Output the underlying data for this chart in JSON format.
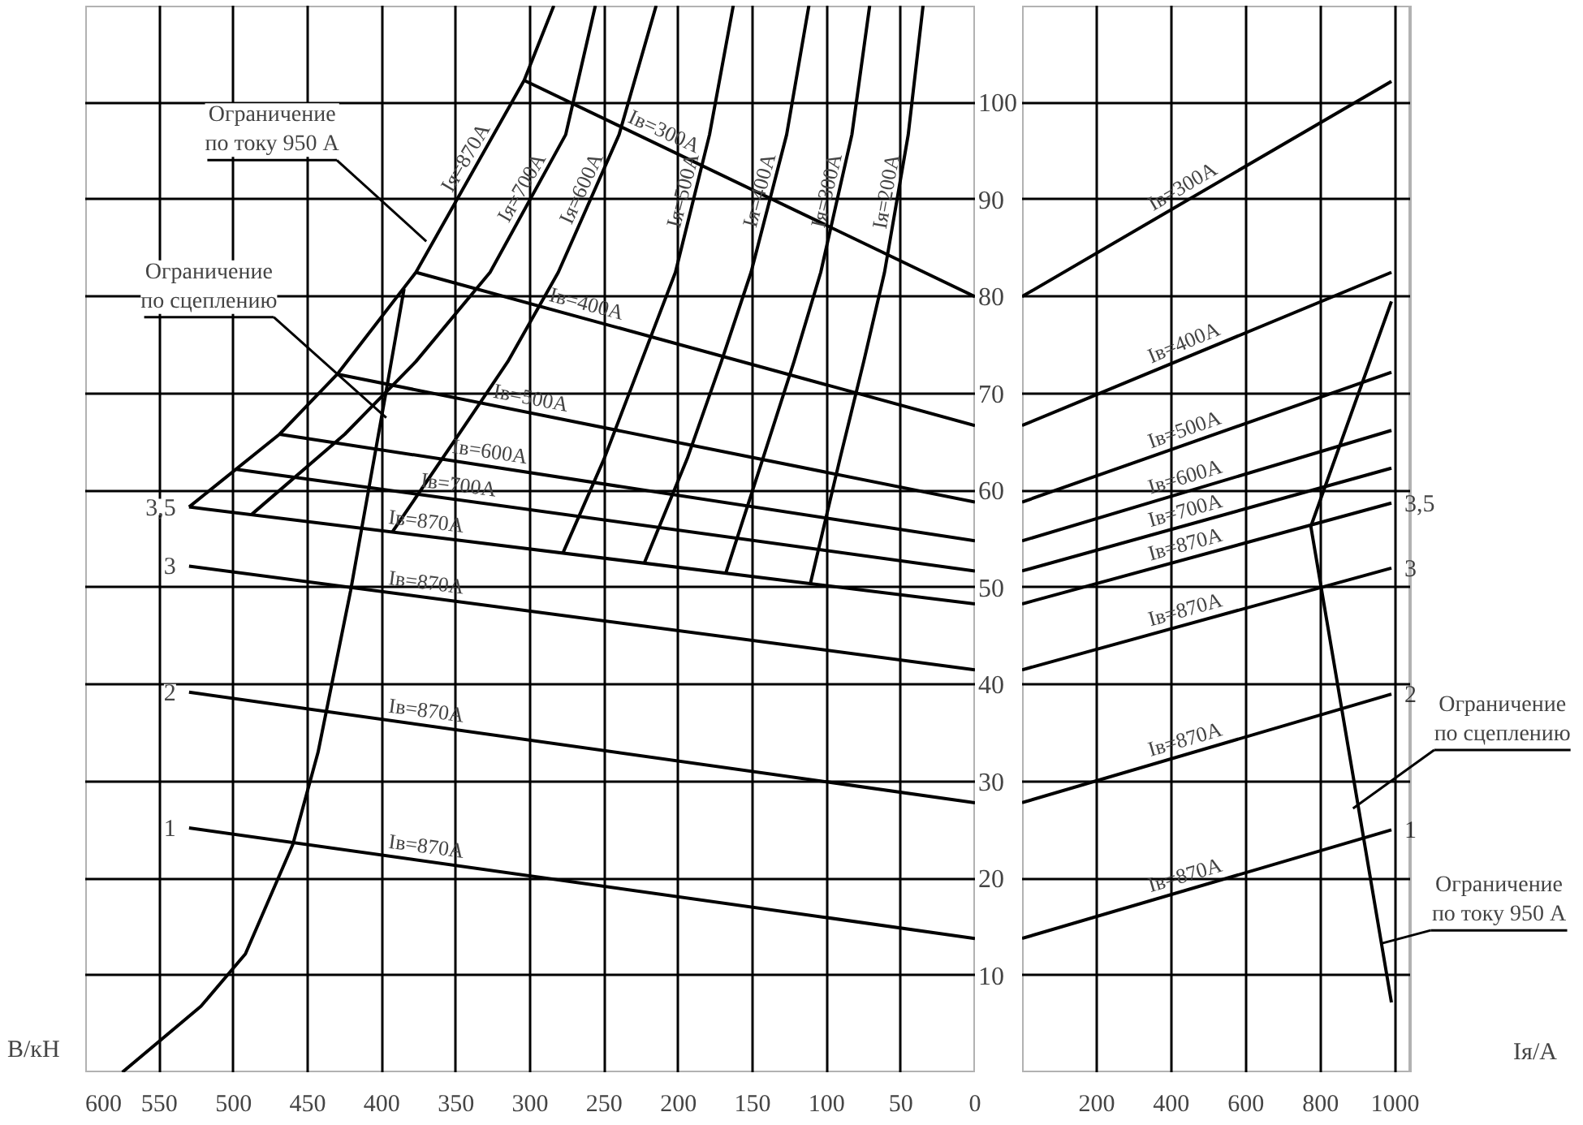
{
  "chart_data": [
    {
      "type": "line",
      "xlabel": "В/кН",
      "xlim": [
        600,
        0
      ],
      "xticks": [
        600,
        550,
        500,
        450,
        400,
        350,
        300,
        250,
        200,
        150,
        100,
        50,
        0
      ],
      "ylim": [
        0,
        110
      ],
      "yticks": [
        10,
        20,
        30,
        40,
        50,
        60,
        70,
        80,
        90,
        100
      ],
      "grid": true,
      "series": [
        {
          "name": "Iв=300A",
          "color": "#000000",
          "x": [
            304,
            0
          ],
          "values": [
            102.3,
            80
          ]
        },
        {
          "name": "Iв=400A",
          "color": "#000000",
          "x": [
            377,
            0
          ],
          "values": [
            82.5,
            66.7
          ]
        },
        {
          "name": "Iв=500A",
          "color": "#000000",
          "x": [
            430,
            0
          ],
          "values": [
            72,
            58.8
          ]
        },
        {
          "name": "Iв=600A",
          "color": "#000000",
          "x": [
            469,
            0
          ],
          "values": [
            65.8,
            54.8
          ]
        },
        {
          "name": "Iв=700A",
          "color": "#000000",
          "x": [
            499,
            0
          ],
          "values": [
            62.2,
            51.7
          ]
        },
        {
          "name": "Iв=870A",
          "color": "#000000",
          "x": [
            530,
            0
          ],
          "values": [
            58.3,
            48.3
          ]
        },
        {
          "name": "Iв=870A",
          "color": "#000000",
          "x": [
            530,
            0
          ],
          "values": [
            52.2,
            41.5
          ]
        },
        {
          "name": "Iв=870A",
          "color": "#000000",
          "x": [
            530,
            0
          ],
          "values": [
            39.2,
            27.8
          ]
        },
        {
          "name": "Iв=870A",
          "color": "#000000",
          "x": [
            530,
            0
          ],
          "values": [
            25.2,
            13.8
          ]
        },
        {
          "name": "Iя=870A",
          "color": "#000000",
          "x": [
            530,
            469,
            430,
            377,
            304,
            284
          ],
          "values": [
            58.3,
            65.8,
            72,
            82.5,
            102.3,
            110
          ]
        },
        {
          "name": "Iя=700A",
          "color": "#000000",
          "x": [
            488,
            425,
            377,
            327,
            276,
            256
          ],
          "values": [
            57.5,
            65.8,
            73.3,
            82.5,
            96.7,
            110
          ]
        },
        {
          "name": "Iя=600A",
          "color": "#000000",
          "x": [
            393,
            348,
            315,
            281,
            240,
            215
          ],
          "values": [
            55.7,
            65.8,
            73.3,
            82.5,
            96.7,
            110
          ]
        },
        {
          "name": "Iя=500A",
          "color": "#000000",
          "x": [
            278,
            250,
            225,
            202,
            179,
            163
          ],
          "values": [
            53.5,
            63.3,
            73.3,
            82.5,
            96.7,
            110
          ]
        },
        {
          "name": "Iя=400A",
          "color": "#000000",
          "x": [
            223,
            194,
            171,
            151,
            127,
            112
          ],
          "values": [
            52.5,
            63.3,
            73.3,
            82.5,
            96.7,
            110
          ]
        },
        {
          "name": "Iя=300A",
          "color": "#000000",
          "x": [
            168,
            143,
            122,
            104,
            83,
            71
          ],
          "values": [
            51.5,
            63.3,
            73.3,
            82.5,
            96.7,
            110
          ]
        },
        {
          "name": "Iя=200A",
          "color": "#000000",
          "x": [
            111,
            91,
            75,
            61,
            45,
            35
          ],
          "values": [
            50.4,
            63.3,
            73.3,
            82.5,
            96.7,
            110
          ]
        },
        {
          "color": "#000000",
          "x": [
            575,
            522,
            492,
            460,
            443,
            421,
            409,
            397,
            385
          ],
          "values": [
            0,
            6.8,
            12.2,
            23.5,
            33,
            49.7,
            60,
            70.3,
            80.8
          ]
        }
      ],
      "annotations": [
        {
          "text": "Ограничение по току 950 А",
          "x": 370,
          "y": 85.7
        },
        {
          "text": "Ограничение по сцеплению",
          "x": 397,
          "y": 67.5
        },
        {
          "text": "3,5",
          "x": 530,
          "y": 58.3
        },
        {
          "text": "3",
          "x": 530,
          "y": 52.2
        },
        {
          "text": "2",
          "x": 530,
          "y": 39.2
        },
        {
          "text": "1",
          "x": 530,
          "y": 25.2
        }
      ]
    },
    {
      "type": "line",
      "xlabel": "Iя/A",
      "xlim": [
        0,
        1040
      ],
      "xticks": [
        {
          "value": 0,
          "label": null
        },
        200,
        400,
        600,
        800,
        1000
      ],
      "ylim": [
        0,
        110
      ],
      "yticks": [
        10,
        20,
        30,
        40,
        50,
        60,
        70,
        80,
        90,
        100
      ],
      "grid": true,
      "tick_labels": "x",
      "series": [
        {
          "name": "Iв=300A",
          "color": "#000000",
          "x": [
            0,
            990
          ],
          "values": [
            80,
            102.2
          ]
        },
        {
          "name": "Iв=400A",
          "color": "#000000",
          "x": [
            0,
            990
          ],
          "values": [
            66.7,
            82.5
          ]
        },
        {
          "name": "Iв=500A",
          "color": "#000000",
          "x": [
            0,
            990
          ],
          "values": [
            58.8,
            72.2
          ]
        },
        {
          "name": "Iв=600A",
          "color": "#000000",
          "x": [
            0,
            990
          ],
          "values": [
            54.8,
            66.2
          ]
        },
        {
          "name": "Iв=700A",
          "color": "#000000",
          "x": [
            0,
            990
          ],
          "values": [
            51.7,
            62.3
          ]
        },
        {
          "name": "Iв=870A",
          "color": "#000000",
          "x": [
            0,
            990
          ],
          "values": [
            48.3,
            58.7
          ]
        },
        {
          "name": "Iв=870A",
          "color": "#000000",
          "x": [
            0,
            990
          ],
          "values": [
            41.5,
            52
          ]
        },
        {
          "name": "Iв=870A",
          "color": "#000000",
          "x": [
            0,
            990
          ],
          "values": [
            27.8,
            39
          ]
        },
        {
          "name": "Iв=870A",
          "color": "#000000",
          "x": [
            0,
            990
          ],
          "values": [
            13.8,
            25
          ]
        },
        {
          "color": "#000000",
          "x": [
            990,
            774,
            990
          ],
          "values": [
            79.5,
            56.3,
            7.2
          ]
        }
      ],
      "annotations": [
        {
          "text": "Ограничение по сцеплению",
          "x": 887,
          "y": 27.2
        },
        {
          "text": "Ограничение по току 950 А",
          "x": 965,
          "y": 13.3
        },
        {
          "text": "3,5",
          "x": 990,
          "y": 58.7
        },
        {
          "text": "3",
          "x": 990,
          "y": 52
        },
        {
          "text": "2",
          "x": 990,
          "y": 39
        },
        {
          "text": "1",
          "x": 990,
          "y": 25
        }
      ]
    }
  ]
}
